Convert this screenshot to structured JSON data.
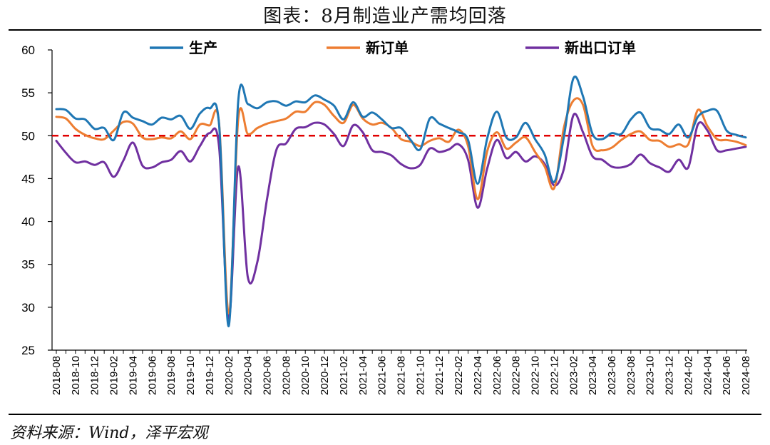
{
  "title": "图表：8月制造业产需均回落",
  "source": "资料来源：Wind，泽平宏观",
  "colors": {
    "production": "#1F77B4",
    "new_orders": "#ED7D31",
    "export_orders": "#7030A0",
    "threshold": "#E00000"
  },
  "chart_data": {
    "type": "line",
    "title": "图表：8月制造业产需均回落",
    "xlabel": "",
    "ylabel": "",
    "ylim": [
      25,
      60
    ],
    "yticks": [
      25,
      30,
      35,
      40,
      45,
      50,
      55,
      60
    ],
    "reference_line": 50,
    "legend_position": "top",
    "grid": false,
    "x": [
      "2018-08",
      "2018-09",
      "2018-10",
      "2018-11",
      "2018-12",
      "2019-01",
      "2019-02",
      "2019-03",
      "2019-04",
      "2019-05",
      "2019-06",
      "2019-07",
      "2019-08",
      "2019-09",
      "2019-10",
      "2019-11",
      "2019-12",
      "2020-01",
      "2020-02",
      "2020-03",
      "2020-04",
      "2020-05",
      "2020-06",
      "2020-07",
      "2020-08",
      "2020-09",
      "2020-10",
      "2020-11",
      "2020-12",
      "2021-01",
      "2021-02",
      "2021-03",
      "2021-04",
      "2021-05",
      "2021-06",
      "2021-07",
      "2021-08",
      "2021-09",
      "2021-10",
      "2021-11",
      "2021-12",
      "2022-01",
      "2022-02",
      "2022-03",
      "2022-04",
      "2022-05",
      "2022-06",
      "2022-07",
      "2022-08",
      "2022-09",
      "2022-10",
      "2022-11",
      "2022-12",
      "2023-01",
      "2023-02",
      "2023-03",
      "2023-04",
      "2023-05",
      "2023-06",
      "2023-07",
      "2023-08",
      "2023-09",
      "2023-10",
      "2023-11",
      "2023-12",
      "2024-01",
      "2024-02",
      "2024-03",
      "2024-04",
      "2024-05",
      "2024-06",
      "2024-07",
      "2024-08"
    ],
    "xticklabels": [
      "2018-08",
      "2018-10",
      "2018-12",
      "2019-02",
      "2019-04",
      "2019-06",
      "2019-08",
      "2019-10",
      "2019-12",
      "2020-02",
      "2020-04",
      "2020-06",
      "2020-08",
      "2020-10",
      "2020-12",
      "2021-02",
      "2021-04",
      "2021-06",
      "2021-08",
      "2021-10",
      "2021-12",
      "2022-02",
      "2022-04",
      "2022-06",
      "2022-08",
      "2022-10",
      "2022-12",
      "2023-02",
      "2023-04",
      "2023-06",
      "2023-08",
      "2023-10",
      "2023-12",
      "2024-02",
      "2024-04",
      "2024-06",
      "2024-08"
    ],
    "series": [
      {
        "key": "production",
        "name": "生产",
        "values": [
          53.1,
          53.0,
          52.0,
          51.9,
          50.8,
          50.9,
          49.5,
          52.7,
          52.1,
          51.7,
          51.3,
          52.1,
          51.9,
          52.3,
          50.8,
          52.6,
          53.2,
          51.3,
          27.8,
          54.1,
          53.7,
          53.2,
          53.9,
          54.0,
          53.5,
          54.0,
          53.9,
          54.7,
          54.2,
          53.5,
          51.9,
          53.9,
          52.2,
          52.7,
          51.9,
          50.9,
          50.9,
          49.5,
          48.4,
          52.0,
          51.4,
          50.9,
          50.4,
          49.5,
          44.4,
          49.7,
          52.8,
          49.8,
          49.8,
          51.5,
          49.6,
          47.8,
          44.6,
          49.8,
          56.7,
          54.6,
          50.2,
          49.6,
          50.3,
          50.2,
          51.9,
          52.7,
          50.9,
          50.7,
          50.2,
          51.3,
          49.8,
          52.2,
          52.9,
          52.9,
          50.6,
          50.1,
          49.8
        ]
      },
      {
        "key": "new_orders",
        "name": "新订单",
        "values": [
          52.2,
          52.0,
          50.8,
          50.1,
          49.7,
          49.6,
          50.6,
          51.6,
          51.4,
          49.8,
          49.6,
          49.8,
          49.7,
          50.5,
          49.6,
          51.3,
          51.2,
          51.4,
          29.3,
          52.0,
          50.2,
          50.9,
          51.4,
          51.7,
          52.0,
          52.8,
          52.8,
          53.9,
          53.6,
          52.3,
          51.5,
          53.6,
          52.0,
          51.3,
          51.5,
          50.9,
          49.6,
          49.3,
          48.8,
          49.4,
          49.7,
          49.3,
          50.7,
          48.8,
          42.6,
          48.2,
          50.4,
          48.5,
          49.2,
          49.8,
          48.1,
          46.4,
          43.9,
          50.9,
          54.1,
          53.6,
          48.8,
          48.3,
          48.6,
          49.5,
          50.2,
          50.5,
          49.5,
          49.4,
          48.7,
          49.0,
          49.0,
          53.0,
          51.1,
          49.6,
          49.5,
          49.3,
          48.9
        ]
      },
      {
        "key": "export_orders",
        "name": "新出口订单",
        "values": [
          49.4,
          48.0,
          46.9,
          47.0,
          46.6,
          46.9,
          45.2,
          47.1,
          49.2,
          46.5,
          46.3,
          46.9,
          47.2,
          48.2,
          47.0,
          48.8,
          50.3,
          48.7,
          28.7,
          46.4,
          33.5,
          35.3,
          42.6,
          48.4,
          49.1,
          50.8,
          51.0,
          51.5,
          51.3,
          50.2,
          48.8,
          51.2,
          50.4,
          48.3,
          48.1,
          47.7,
          46.7,
          46.2,
          46.6,
          48.5,
          48.1,
          48.4,
          49.0,
          47.2,
          41.6,
          46.2,
          49.5,
          47.4,
          48.1,
          47.0,
          47.6,
          46.7,
          44.2,
          46.1,
          52.4,
          50.4,
          47.6,
          47.2,
          46.4,
          46.3,
          46.7,
          47.8,
          46.8,
          46.3,
          45.8,
          47.2,
          46.3,
          51.3,
          50.6,
          48.3,
          48.3,
          48.5,
          48.7
        ]
      }
    ]
  }
}
